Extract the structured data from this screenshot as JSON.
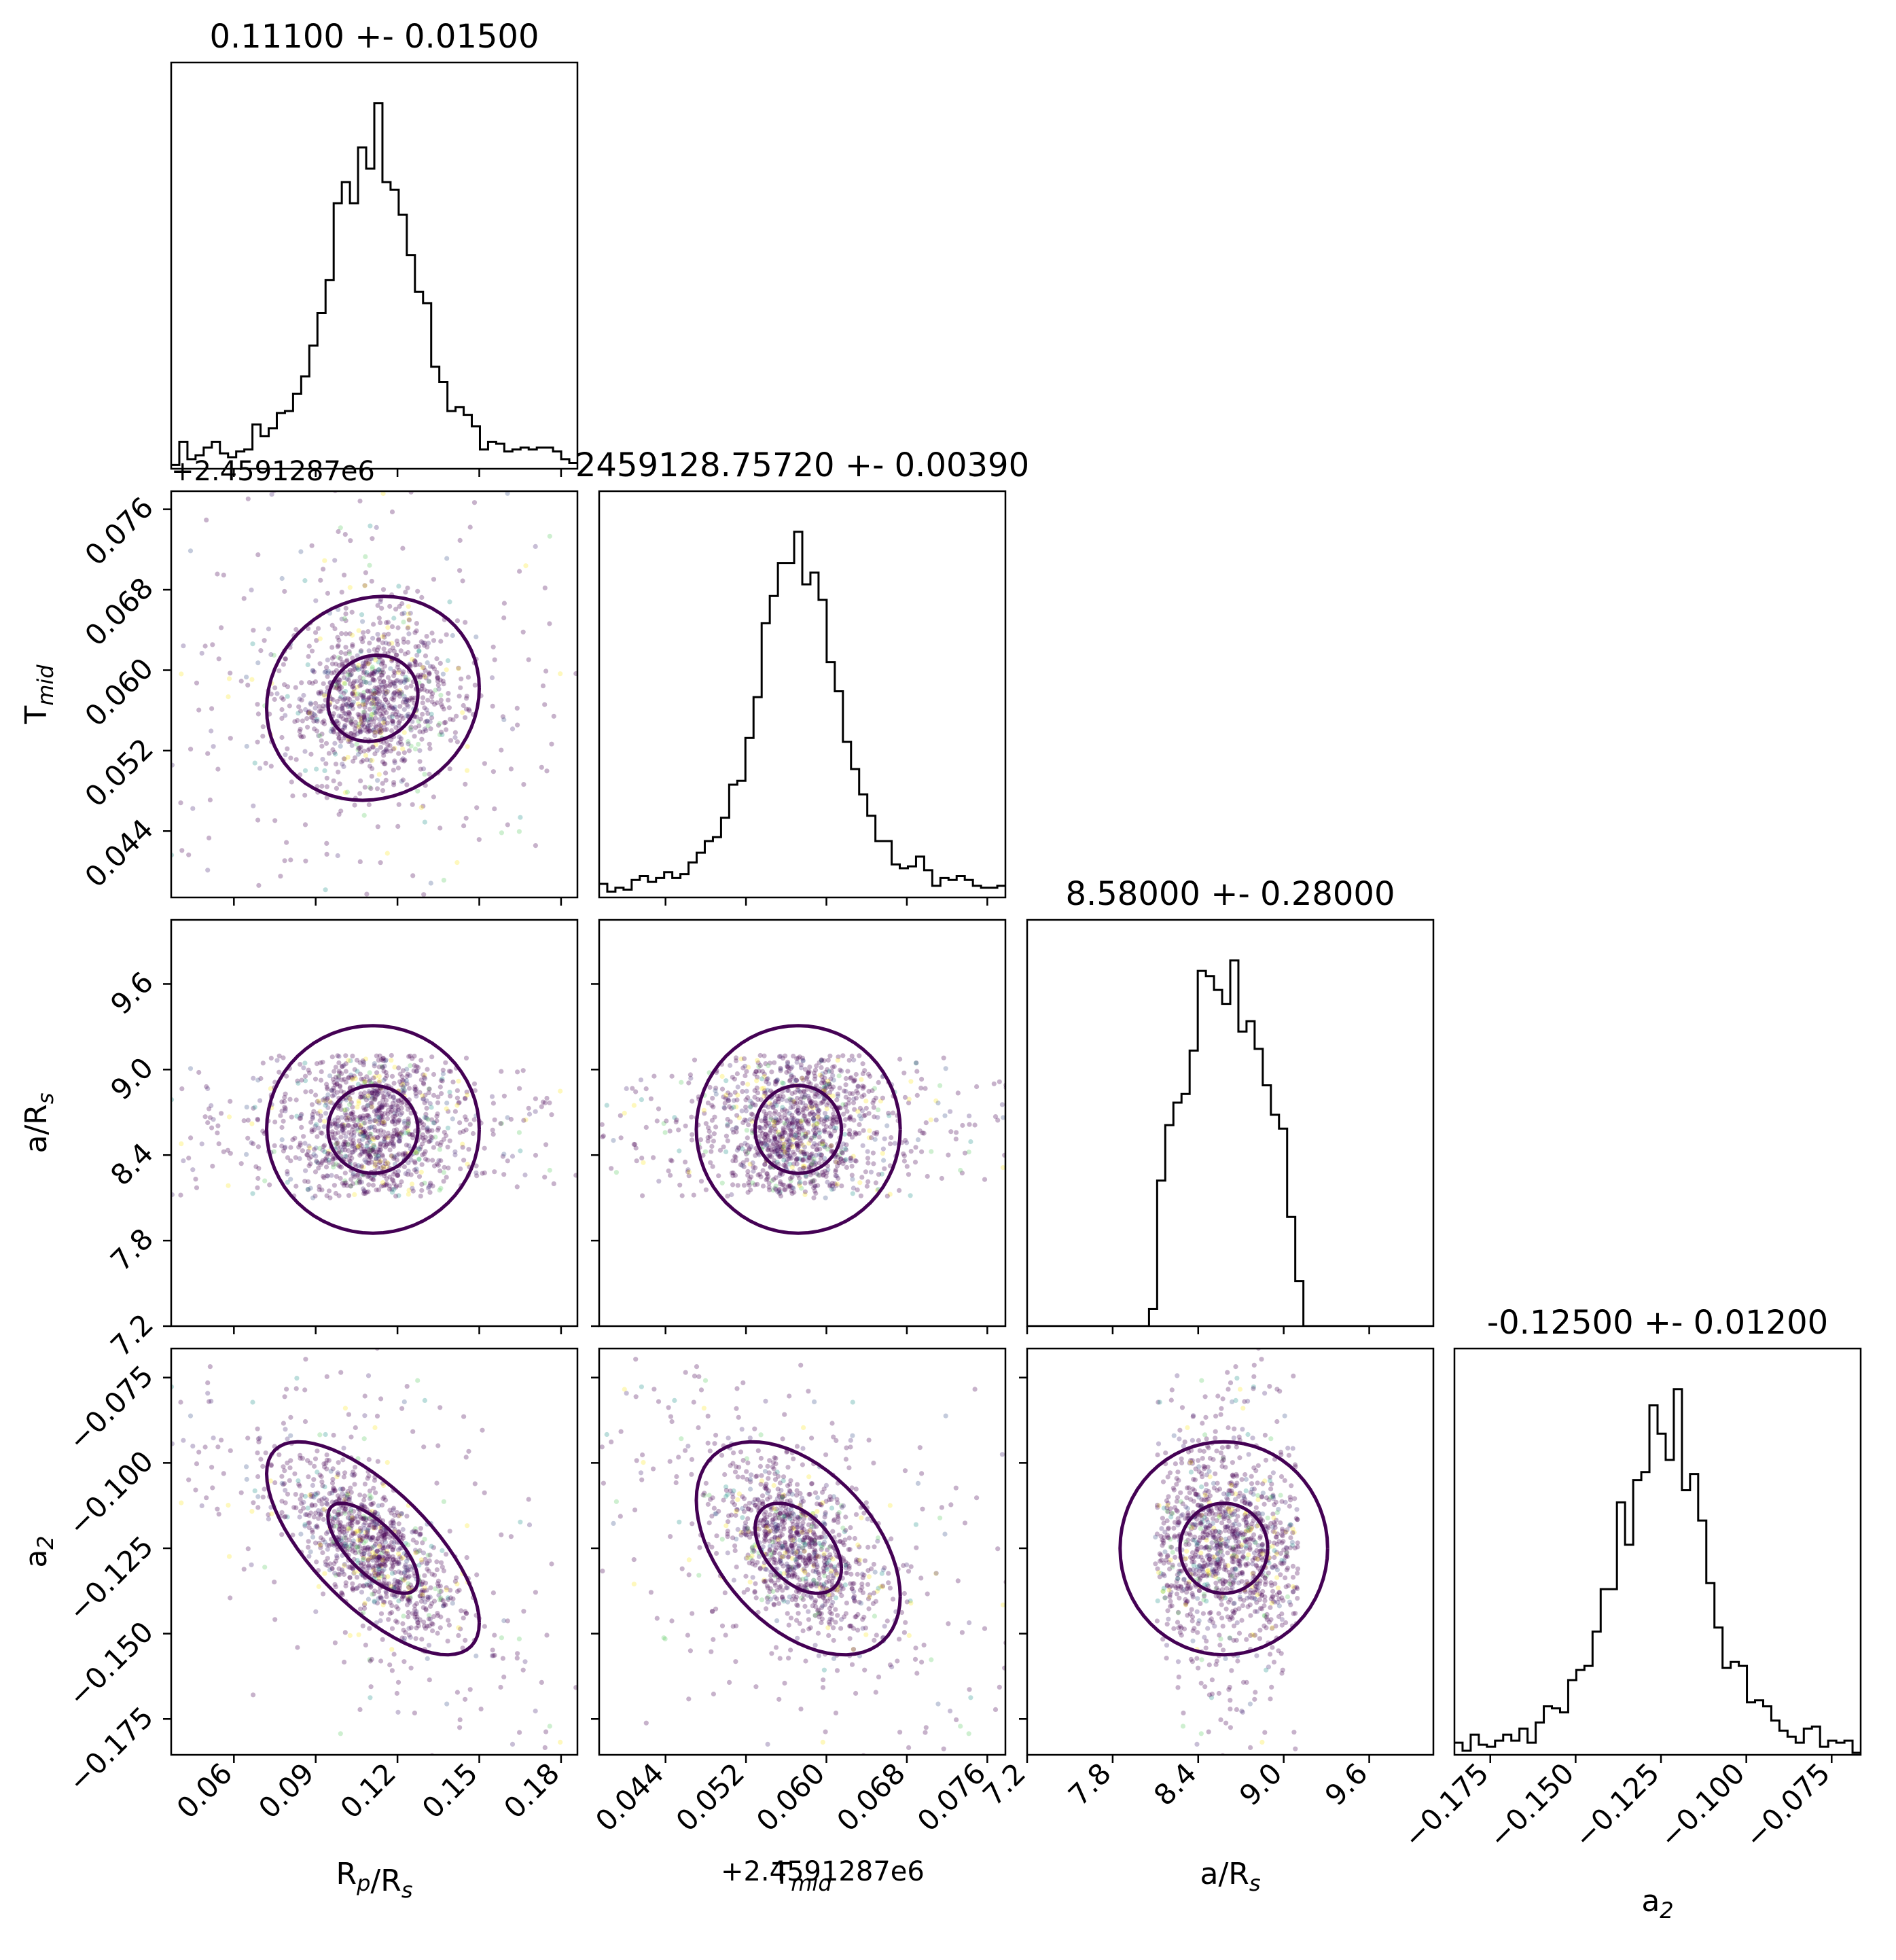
{
  "figure": {
    "type": "corner-plot",
    "scatter_colormap": "viridis",
    "contour_color": "#440154",
    "histogram_color": "#000000"
  },
  "chart_data": {
    "type": "corner",
    "parameters": [
      {
        "key": "rp",
        "label_main": "R",
        "label_sub": "p",
        "label_mid": "/R",
        "label_sub2": "s",
        "title": "0.11100 +- 0.01500",
        "mean": 0.111,
        "sigma": 0.015,
        "range": [
          0.037,
          0.186
        ],
        "ticks": [
          0.06,
          0.09,
          0.12,
          0.15,
          0.18
        ],
        "ticklabels": [
          "0.06",
          "0.09",
          "0.12",
          "0.15",
          "0.18"
        ]
      },
      {
        "key": "tmid",
        "label_main": "T",
        "label_sub": "mid",
        "label_mid": "",
        "label_sub2": "",
        "title": "2459128.75720 +- 0.00390",
        "mean": 0.0572,
        "sigma": 0.0039,
        "offset": "+2.4591287e6",
        "range": [
          0.0374,
          0.0778
        ],
        "ticks": [
          0.044,
          0.052,
          0.06,
          0.068,
          0.076
        ],
        "ticklabels": [
          "0.044",
          "0.052",
          "0.060",
          "0.068",
          "0.076"
        ]
      },
      {
        "key": "ars",
        "label_main": "a/R",
        "label_sub": "s",
        "label_mid": "",
        "label_sub2": "",
        "title": "8.58000 +- 0.28000",
        "mean": 8.58,
        "sigma": 0.28,
        "range": [
          7.2,
          10.05
        ],
        "ticks": [
          7.2,
          7.8,
          8.4,
          9.0,
          9.6
        ],
        "ticklabels": [
          "7.2",
          "7.8",
          "8.4",
          "9.0",
          "9.6"
        ],
        "prior": [
          8.1,
          9.1
        ]
      },
      {
        "key": "a2",
        "label_main": "a",
        "label_sub": "2",
        "label_mid": "",
        "label_sub2": "",
        "title": "-0.12500 +- 0.01200",
        "mean": -0.125,
        "sigma": 0.012,
        "range": [
          -0.1855,
          -0.0665
        ],
        "ticks": [
          -0.175,
          -0.15,
          -0.125,
          -0.1,
          -0.075
        ],
        "ticklabels": [
          "−0.175",
          "−0.150",
          "−0.125",
          "−0.100",
          "−0.075"
        ]
      }
    ],
    "correlations": {
      "0-1": 0.1,
      "0-3": -0.7,
      "1-3": -0.45,
      "2-3": 0.0,
      "0-2": 0.0,
      "1-2": 0.0
    },
    "n_samples": 2600,
    "n_bins": 50
  }
}
